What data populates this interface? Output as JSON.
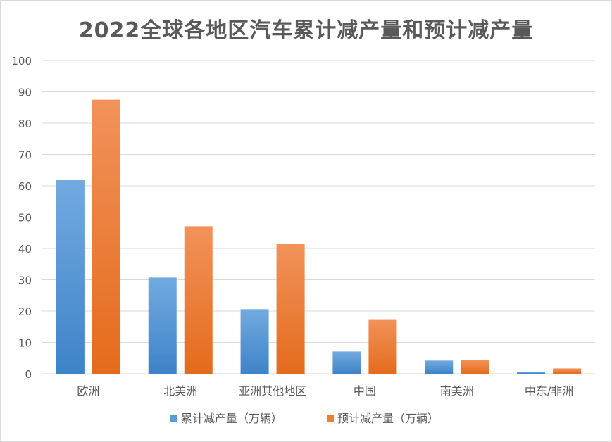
{
  "chart_data": {
    "type": "bar",
    "title": "2022全球各地区汽车累计减产量和预计减产量",
    "categories": [
      "欧洲",
      "北美洲",
      "亚洲其他地区",
      "中国",
      "南美洲",
      "中东/非洲"
    ],
    "series": [
      {
        "name": "累计减产量（万辆）",
        "values": [
          61.8,
          30.7,
          20.6,
          7.1,
          4.2,
          0.6
        ]
      },
      {
        "name": "预计减产量（万辆）",
        "values": [
          87.5,
          47.1,
          41.5,
          17.4,
          4.3,
          1.7
        ]
      }
    ],
    "ylim": [
      0,
      100
    ],
    "yticks": [
      0,
      10,
      20,
      30,
      40,
      50,
      60,
      70,
      80,
      90,
      100
    ],
    "grid": true,
    "legend": "bottom"
  },
  "colors": {
    "series_blue": "#5b9bd5",
    "series_orange": "#ed7d31",
    "grid": "#d9d9d9",
    "text": "#595959"
  }
}
